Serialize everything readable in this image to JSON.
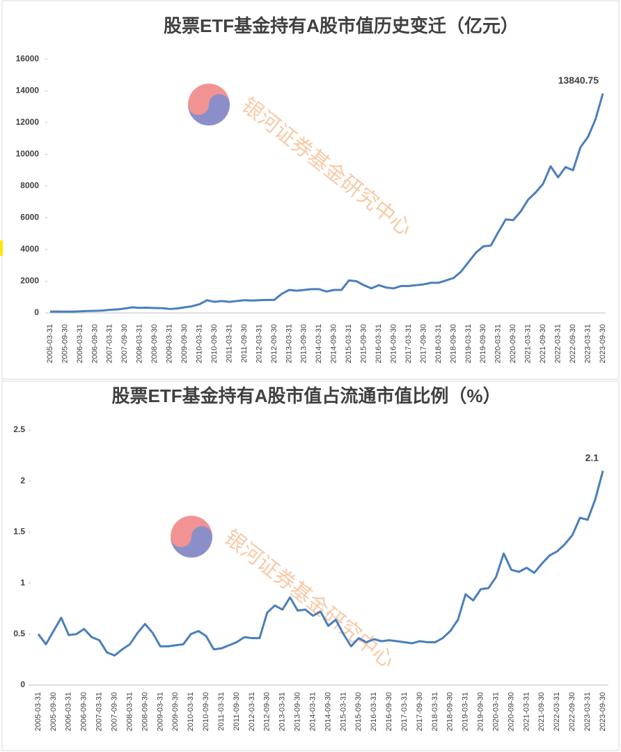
{
  "chart_data": [
    {
      "type": "line",
      "title": "股票ETF基金持有A股市值历史变迁（亿元）",
      "watermark": "银河证券基金研究中心",
      "categories": [
        "2005-03-31",
        null,
        "2005-09-30",
        null,
        "2006-03-31",
        null,
        "2006-09-30",
        null,
        "2007-03-31",
        null,
        "2007-09-30",
        null,
        "2008-03-31",
        null,
        "2008-09-30",
        null,
        "2009-03-31",
        null,
        "2009-09-30",
        null,
        "2010-03-31",
        null,
        "2010-09-30",
        null,
        "2011-03-31",
        null,
        "2011-09-30",
        null,
        "2012-03-31",
        null,
        "2012-09-30",
        null,
        "2013-03-31",
        null,
        "2013-09-30",
        null,
        "2014-03-31",
        null,
        "2014-09-30",
        null,
        "2015-03-31",
        null,
        "2015-09-30",
        null,
        "2016-03-31",
        null,
        "2016-09-30",
        null,
        "2017-03-31",
        null,
        "2017-09-30",
        null,
        "2018-03-31",
        null,
        "2018-09-30",
        null,
        "2019-03-31",
        null,
        "2019-09-30",
        null,
        "2020-03-31",
        null,
        "2020-09-30",
        null,
        "2021-03-31",
        null,
        "2021-09-30",
        null,
        "2022-03-31",
        null,
        "2022-09-30",
        null,
        "2023-03-31",
        null,
        "2023-09-30"
      ],
      "series": [
        {
          "color": "#4a7ebb",
          "values": [
            80,
            90,
            85,
            80,
            100,
            120,
            130,
            150,
            200,
            220,
            280,
            350,
            320,
            330,
            310,
            300,
            250,
            280,
            350,
            420,
            550,
            800,
            700,
            750,
            700,
            750,
            800,
            780,
            800,
            820,
            820,
            1200,
            1450,
            1400,
            1450,
            1500,
            1500,
            1350,
            1450,
            1450,
            2050,
            2000,
            1750,
            1550,
            1750,
            1600,
            1550,
            1700,
            1700,
            1750,
            1800,
            1900,
            1900,
            2050,
            2200,
            2600,
            3200,
            3800,
            4200,
            4250,
            5100,
            5900,
            5850,
            6400,
            7150,
            7600,
            8150,
            9250,
            8550,
            9200,
            9000,
            10450,
            11100,
            12200,
            13840.75
          ]
        }
      ],
      "ylim": [
        0,
        16000
      ],
      "yticks": [
        0,
        2000,
        4000,
        6000,
        8000,
        10000,
        12000,
        14000,
        16000
      ]
    },
    {
      "type": "line",
      "title": "股票ETF基金持有A股市值占流通市值比例（%）",
      "watermark": "银河证券基金研究中心",
      "categories": [
        "2005-03-31",
        null,
        "2005-09-30",
        null,
        "2006-03-31",
        null,
        "2006-09-30",
        null,
        "2007-03-31",
        null,
        "2007-09-30",
        null,
        "2008-03-31",
        null,
        "2008-09-30",
        null,
        "2009-03-31",
        null,
        "2009-09-30",
        null,
        "2010-03-31",
        null,
        "2010-09-30",
        null,
        "2011-03-31",
        null,
        "2011-09-30",
        null,
        "2012-03-31",
        null,
        "2012-09-30",
        null,
        "2013-03-31",
        null,
        "2013-09-30",
        null,
        "2014-03-31",
        null,
        "2014-09-30",
        null,
        "2015-03-31",
        null,
        "2015-09-30",
        null,
        "2016-03-31",
        null,
        "2016-09-30",
        null,
        "2017-03-31",
        null,
        "2017-09-30",
        null,
        "2018-03-31",
        null,
        "2018-09-30",
        null,
        "2019-03-31",
        null,
        "2019-09-30",
        null,
        "2020-03-31",
        null,
        "2020-09-30",
        null,
        "2021-03-31",
        null,
        "2021-09-30",
        null,
        "2022-03-31",
        null,
        "2022-09-30",
        null,
        "2023-03-31",
        null,
        "2023-09-30"
      ],
      "series": [
        {
          "color": "#4a7ebb",
          "values": [
            0.5,
            0.4,
            0.53,
            0.66,
            0.49,
            0.5,
            0.55,
            0.47,
            0.44,
            0.32,
            0.29,
            0.35,
            0.4,
            0.51,
            0.6,
            0.51,
            0.38,
            0.38,
            0.39,
            0.4,
            0.5,
            0.53,
            0.48,
            0.35,
            0.36,
            0.39,
            0.42,
            0.47,
            0.46,
            0.46,
            0.71,
            0.78,
            0.74,
            0.86,
            0.73,
            0.74,
            0.68,
            0.72,
            0.58,
            0.64,
            0.5,
            0.38,
            0.46,
            0.42,
            0.45,
            0.43,
            0.44,
            0.43,
            0.42,
            0.41,
            0.43,
            0.42,
            0.42,
            0.46,
            0.53,
            0.64,
            0.89,
            0.83,
            0.94,
            0.95,
            1.06,
            1.29,
            1.13,
            1.11,
            1.15,
            1.1,
            1.19,
            1.27,
            1.31,
            1.38,
            1.47,
            1.64,
            1.62,
            1.82,
            2.1
          ]
        }
      ],
      "ylim": [
        0,
        2.5
      ],
      "yticks": [
        0,
        0.5,
        1,
        1.5,
        2,
        2.5
      ]
    }
  ]
}
